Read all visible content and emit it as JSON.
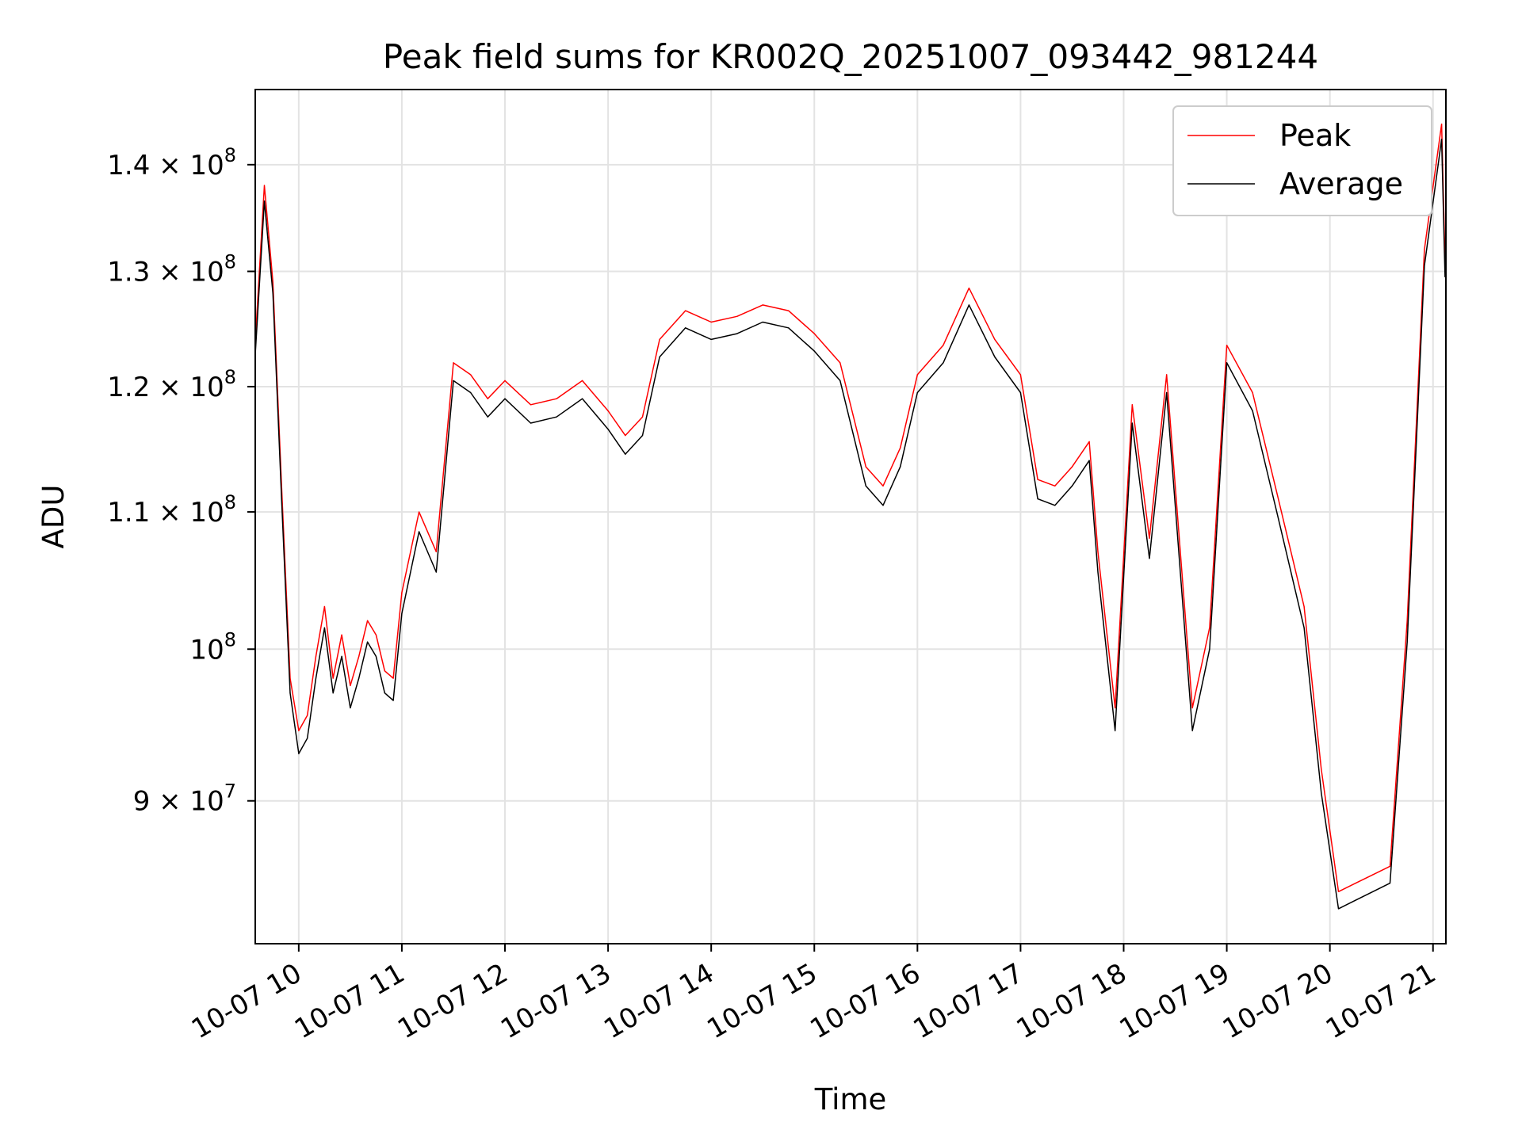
{
  "chart_data": {
    "type": "line",
    "title": "Peak field sums for KR002Q_20251007_093442_981244",
    "xlabel": "Time",
    "ylabel": "ADU",
    "yscale": "log",
    "ylim": [
      81500000,
      147500000
    ],
    "xlim": [
      "2025-10-07 09:34:42",
      "2025-10-07 21:07:30"
    ],
    "grid": true,
    "legend_position": "top-right",
    "x_ticks": [
      {
        "t": "2025-10-07 10:00",
        "label": "10-07 10"
      },
      {
        "t": "2025-10-07 11:00",
        "label": "10-07 11"
      },
      {
        "t": "2025-10-07 12:00",
        "label": "10-07 12"
      },
      {
        "t": "2025-10-07 13:00",
        "label": "10-07 13"
      },
      {
        "t": "2025-10-07 14:00",
        "label": "10-07 14"
      },
      {
        "t": "2025-10-07 15:00",
        "label": "10-07 15"
      },
      {
        "t": "2025-10-07 16:00",
        "label": "10-07 16"
      },
      {
        "t": "2025-10-07 17:00",
        "label": "10-07 17"
      },
      {
        "t": "2025-10-07 18:00",
        "label": "10-07 18"
      },
      {
        "t": "2025-10-07 19:00",
        "label": "10-07 19"
      },
      {
        "t": "2025-10-07 20:00",
        "label": "10-07 20"
      },
      {
        "t": "2025-10-07 21:00",
        "label": "10-07 21"
      }
    ],
    "y_ticks": [
      {
        "value": 90000000,
        "mant": "9",
        "exp": "7"
      },
      {
        "value": 100000000,
        "mant": "",
        "exp": "8"
      },
      {
        "value": 110000000,
        "mant": "1.1",
        "exp": "8"
      },
      {
        "value": 120000000,
        "mant": "1.2",
        "exp": "8"
      },
      {
        "value": 130000000,
        "mant": "1.3",
        "exp": "8"
      },
      {
        "value": 140000000,
        "mant": "1.4",
        "exp": "8"
      }
    ],
    "series": [
      {
        "name": "Peak",
        "color": "#ff0000",
        "x": [
          "2025-10-07 09:34",
          "2025-10-07 09:40",
          "2025-10-07 09:45",
          "2025-10-07 09:50",
          "2025-10-07 09:55",
          "2025-10-07 10:00",
          "2025-10-07 10:05",
          "2025-10-07 10:10",
          "2025-10-07 10:15",
          "2025-10-07 10:20",
          "2025-10-07 10:25",
          "2025-10-07 10:30",
          "2025-10-07 10:35",
          "2025-10-07 10:40",
          "2025-10-07 10:45",
          "2025-10-07 10:50",
          "2025-10-07 10:55",
          "2025-10-07 11:00",
          "2025-10-07 11:10",
          "2025-10-07 11:20",
          "2025-10-07 11:30",
          "2025-10-07 11:40",
          "2025-10-07 11:50",
          "2025-10-07 12:00",
          "2025-10-07 12:15",
          "2025-10-07 12:30",
          "2025-10-07 12:45",
          "2025-10-07 13:00",
          "2025-10-07 13:10",
          "2025-10-07 13:20",
          "2025-10-07 13:30",
          "2025-10-07 13:45",
          "2025-10-07 14:00",
          "2025-10-07 14:15",
          "2025-10-07 14:30",
          "2025-10-07 14:45",
          "2025-10-07 15:00",
          "2025-10-07 15:15",
          "2025-10-07 15:30",
          "2025-10-07 15:40",
          "2025-10-07 15:50",
          "2025-10-07 16:00",
          "2025-10-07 16:15",
          "2025-10-07 16:30",
          "2025-10-07 16:45",
          "2025-10-07 17:00",
          "2025-10-07 17:10",
          "2025-10-07 17:20",
          "2025-10-07 17:30",
          "2025-10-07 17:40",
          "2025-10-07 17:45",
          "2025-10-07 17:55",
          "2025-10-07 18:05",
          "2025-10-07 18:15",
          "2025-10-07 18:25",
          "2025-10-07 18:40",
          "2025-10-07 18:50",
          "2025-10-07 19:00",
          "2025-10-07 19:15",
          "2025-10-07 19:30",
          "2025-10-07 19:45",
          "2025-10-07 19:55",
          "2025-10-07 20:05",
          "2025-10-07 20:15",
          "2025-10-07 20:25",
          "2025-10-07 20:35",
          "2025-10-07 20:45",
          "2025-10-07 20:55",
          "2025-10-07 21:05",
          "2025-10-07 21:07"
        ],
        "values": [
          122000000,
          138000000,
          129000000,
          112000000,
          98000000,
          94500000,
          95500000,
          99500000,
          103000000,
          98000000,
          101000000,
          97500000,
          99500000,
          102000000,
          101000000,
          98500000,
          98000000,
          104000000,
          110000000,
          107000000,
          122000000,
          121000000,
          119000000,
          120500000,
          118500000,
          119000000,
          120500000,
          118000000,
          116000000,
          117500000,
          124000000,
          126500000,
          125500000,
          126000000,
          127000000,
          126500000,
          124500000,
          122000000,
          113500000,
          112000000,
          115000000,
          121000000,
          123500000,
          128500000,
          124000000,
          121000000,
          112500000,
          112000000,
          113500000,
          115500000,
          107000000,
          96000000,
          118500000,
          108000000,
          121000000,
          96000000,
          101500000,
          123500000,
          119500000,
          111000000,
          103000000,
          92000000,
          84500000,
          85000000,
          85500000,
          86000000,
          102000000,
          132000000,
          144000000,
          131000000
        ]
      },
      {
        "name": "Average",
        "color": "#000000",
        "x": [
          "2025-10-07 09:34",
          "2025-10-07 09:40",
          "2025-10-07 09:45",
          "2025-10-07 09:50",
          "2025-10-07 09:55",
          "2025-10-07 10:00",
          "2025-10-07 10:05",
          "2025-10-07 10:10",
          "2025-10-07 10:15",
          "2025-10-07 10:20",
          "2025-10-07 10:25",
          "2025-10-07 10:30",
          "2025-10-07 10:35",
          "2025-10-07 10:40",
          "2025-10-07 10:45",
          "2025-10-07 10:50",
          "2025-10-07 10:55",
          "2025-10-07 11:00",
          "2025-10-07 11:10",
          "2025-10-07 11:20",
          "2025-10-07 11:30",
          "2025-10-07 11:40",
          "2025-10-07 11:50",
          "2025-10-07 12:00",
          "2025-10-07 12:15",
          "2025-10-07 12:30",
          "2025-10-07 12:45",
          "2025-10-07 13:00",
          "2025-10-07 13:10",
          "2025-10-07 13:20",
          "2025-10-07 13:30",
          "2025-10-07 13:45",
          "2025-10-07 14:00",
          "2025-10-07 14:15",
          "2025-10-07 14:30",
          "2025-10-07 14:45",
          "2025-10-07 15:00",
          "2025-10-07 15:15",
          "2025-10-07 15:30",
          "2025-10-07 15:40",
          "2025-10-07 15:50",
          "2025-10-07 16:00",
          "2025-10-07 16:15",
          "2025-10-07 16:30",
          "2025-10-07 16:45",
          "2025-10-07 17:00",
          "2025-10-07 17:10",
          "2025-10-07 17:20",
          "2025-10-07 17:30",
          "2025-10-07 17:40",
          "2025-10-07 17:45",
          "2025-10-07 17:55",
          "2025-10-07 18:05",
          "2025-10-07 18:15",
          "2025-10-07 18:25",
          "2025-10-07 18:40",
          "2025-10-07 18:50",
          "2025-10-07 19:00",
          "2025-10-07 19:15",
          "2025-10-07 19:30",
          "2025-10-07 19:45",
          "2025-10-07 19:55",
          "2025-10-07 20:05",
          "2025-10-07 20:15",
          "2025-10-07 20:25",
          "2025-10-07 20:35",
          "2025-10-07 20:45",
          "2025-10-07 20:55",
          "2025-10-07 21:05",
          "2025-10-07 21:07"
        ],
        "values": [
          121000000,
          136500000,
          128000000,
          111000000,
          97000000,
          93000000,
          94000000,
          98000000,
          101500000,
          97000000,
          99500000,
          96000000,
          98000000,
          100500000,
          99500000,
          97000000,
          96500000,
          102500000,
          108500000,
          105500000,
          120500000,
          119500000,
          117500000,
          119000000,
          117000000,
          117500000,
          119000000,
          116500000,
          114500000,
          116000000,
          122500000,
          125000000,
          124000000,
          124500000,
          125500000,
          125000000,
          123000000,
          120500000,
          112000000,
          110500000,
          113500000,
          119500000,
          122000000,
          127000000,
          122500000,
          119500000,
          111000000,
          110500000,
          112000000,
          114000000,
          105500000,
          94500000,
          117000000,
          106500000,
          119500000,
          94500000,
          100000000,
          122000000,
          118000000,
          109500000,
          101500000,
          90500000,
          83500000,
          84000000,
          84500000,
          85000000,
          100500000,
          130500000,
          142500000,
          129500000
        ]
      }
    ]
  }
}
